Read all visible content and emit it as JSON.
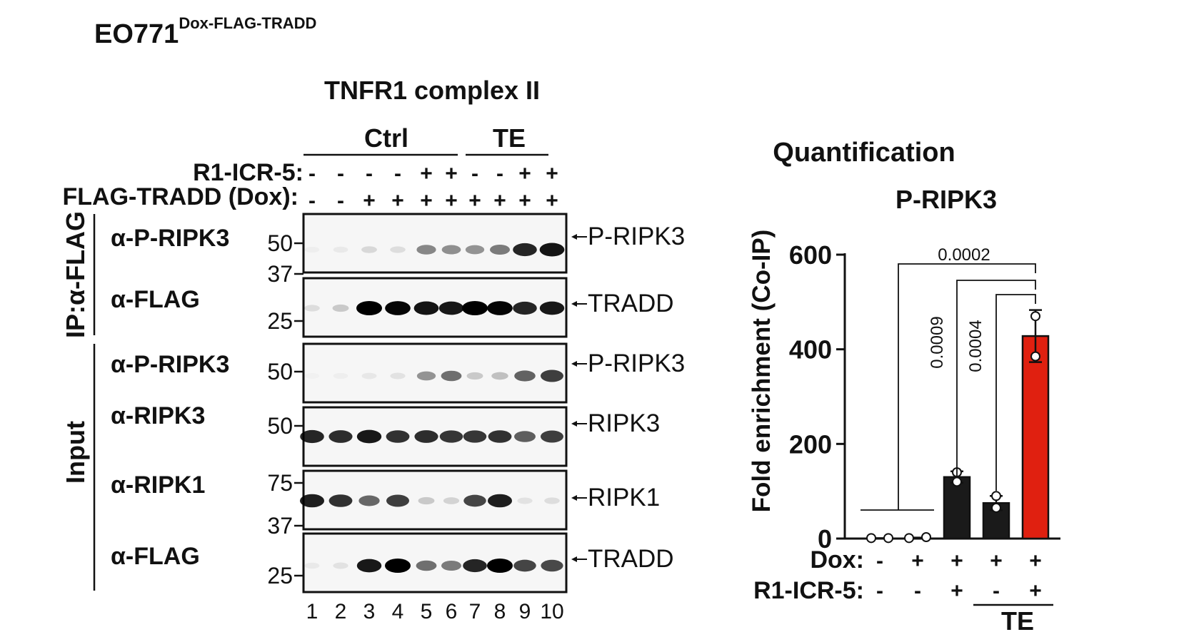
{
  "figure": {
    "cell_line": "EO771",
    "cell_line_sup": "Dox-FLAG-TRADD",
    "complex_title": "TNFR1 complex II",
    "group_ctrl": "Ctrl",
    "group_te": "TE",
    "row_r1icr5_label": "R1-ICR-5:",
    "row_dox_label": "FLAG-TRADD (Dox):",
    "r1icr5_signs": [
      "-",
      "-",
      "-",
      "-",
      "+",
      "+",
      "-",
      "-",
      "+",
      "+"
    ],
    "dox_signs": [
      "-",
      "-",
      "+",
      "+",
      "+",
      "+",
      "+",
      "+",
      "+",
      "+"
    ],
    "lane_numbers": [
      "1",
      "2",
      "3",
      "4",
      "5",
      "6",
      "7",
      "8",
      "9",
      "10"
    ],
    "ip_label": "IP:α-FLAG",
    "input_label": "Input",
    "blots": [
      {
        "antibody": "α-P-RIPK3",
        "markers": [
          "50"
        ],
        "target": "P-RIPK3",
        "intensities": [
          0.03,
          0.05,
          0.12,
          0.1,
          0.45,
          0.42,
          0.4,
          0.5,
          0.85,
          0.92
        ]
      },
      {
        "antibody": "α-FLAG",
        "markers": [
          "37",
          "25"
        ],
        "target": "TRADD",
        "intensities": [
          0.1,
          0.18,
          1.0,
          0.98,
          0.92,
          0.9,
          1.0,
          0.98,
          0.85,
          0.9
        ]
      },
      {
        "antibody": "α-P-RIPK3",
        "markers": [
          "50"
        ],
        "target": "P-RIPK3",
        "intensities": [
          0.02,
          0.03,
          0.06,
          0.08,
          0.4,
          0.55,
          0.18,
          0.22,
          0.6,
          0.75
        ]
      },
      {
        "antibody": "α-RIPK3",
        "markers": [
          "50"
        ],
        "target": "RIPK3",
        "intensities": [
          0.85,
          0.82,
          0.9,
          0.8,
          0.82,
          0.78,
          0.78,
          0.8,
          0.62,
          0.75
        ]
      },
      {
        "antibody": "α-RIPK1",
        "markers": [
          "75",
          "37"
        ],
        "target": "RIPK1",
        "intensities": [
          0.88,
          0.8,
          0.58,
          0.75,
          0.18,
          0.14,
          0.72,
          0.88,
          0.08,
          0.1
        ]
      },
      {
        "antibody": "α-FLAG",
        "markers": [
          "25"
        ],
        "target": "TRADD",
        "intensities": [
          0.05,
          0.08,
          0.9,
          1.0,
          0.55,
          0.5,
          0.85,
          1.0,
          0.72,
          0.7
        ]
      }
    ]
  },
  "chart_data": {
    "type": "bar",
    "heading": "Quantification",
    "title": "P-RIPK3",
    "ylabel": "Fold enrichment (Co-IP)",
    "ylim": [
      0,
      600
    ],
    "yticks": [
      "0",
      "200",
      "400",
      "600"
    ],
    "grid": false,
    "row_dox_label": "Dox:",
    "row_r1icr5_label": "R1-ICR-5:",
    "dox_signs": [
      "-",
      "+",
      "+",
      "+",
      "+"
    ],
    "r1icr5_signs": [
      "-",
      "-",
      "+",
      "-",
      "+"
    ],
    "group_label": "TE",
    "values": [
      1,
      2,
      130,
      75,
      428
    ],
    "errors": [
      0,
      0,
      12,
      15,
      55
    ],
    "points": [
      [
        1,
        1
      ],
      [
        1,
        3
      ],
      [
        120,
        140
      ],
      [
        65,
        90
      ],
      [
        385,
        470
      ]
    ],
    "bar_colors": [
      "#1a1a1a",
      "#1a1a1a",
      "#1a1a1a",
      "#1a1a1a",
      "#e02010"
    ],
    "pvalues": [
      "0.0002",
      "0.0009",
      "0.0004"
    ]
  }
}
